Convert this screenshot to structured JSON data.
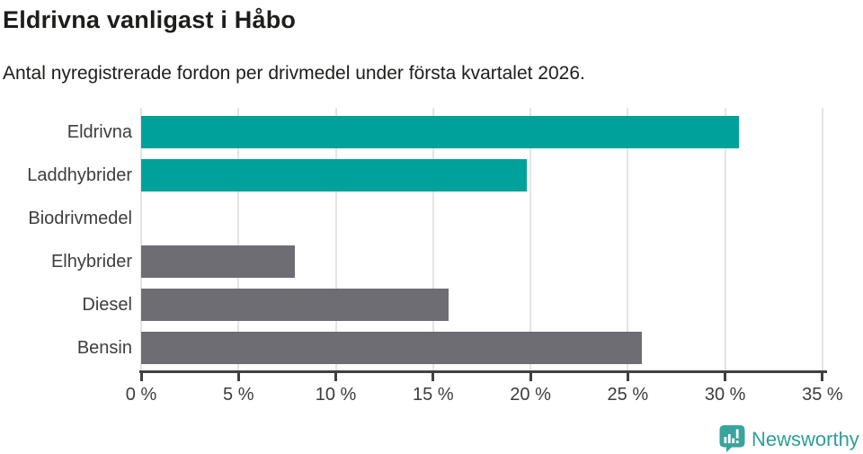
{
  "header": {
    "title": "Eldrivna vanligast i Håbo",
    "subtitle": "Antal nyregistrerade fordon per drivmedel under första kvartalet 2026."
  },
  "chart_data": {
    "type": "bar",
    "orientation": "horizontal",
    "title": "Eldrivna vanligast i Håbo",
    "subtitle": "Antal nyregistrerade fordon per drivmedel under första kvartalet 2026.",
    "categories": [
      "Eldrivna",
      "Laddhybrider",
      "Biodrivmedel",
      "Elhybrider",
      "Diesel",
      "Bensin"
    ],
    "values": [
      30.7,
      19.8,
      0,
      7.9,
      15.8,
      25.7
    ],
    "unit": "%",
    "bar_colors": [
      "#00a19a",
      "#00a19a",
      "#6e6d73",
      "#6e6d73",
      "#6e6d73",
      "#6e6d73"
    ],
    "xlabel": "",
    "ylabel": "",
    "xlim": [
      0,
      35
    ],
    "x_ticks": [
      0,
      5,
      10,
      15,
      20,
      25,
      30,
      35
    ],
    "x_tick_labels": [
      "0 %",
      "5 %",
      "10 %",
      "15 %",
      "20 %",
      "25 %",
      "30 %",
      "35 %"
    ],
    "grid": "vertical-only",
    "legend": "none"
  },
  "branding": {
    "logo_text": "Newsworthy",
    "logo_icon": "newsworthy-barchart-speech-bubble-icon",
    "logo_color": "#2e9e99",
    "icon_color": "#3aa39d"
  },
  "colors": {
    "highlight": "#00a19a",
    "neutral": "#6e6d73",
    "grid": "#e4e4e4",
    "axis": "#403f41",
    "text": "#1d1d1b",
    "label": "#3d3d3d",
    "background": "#ffffff"
  }
}
